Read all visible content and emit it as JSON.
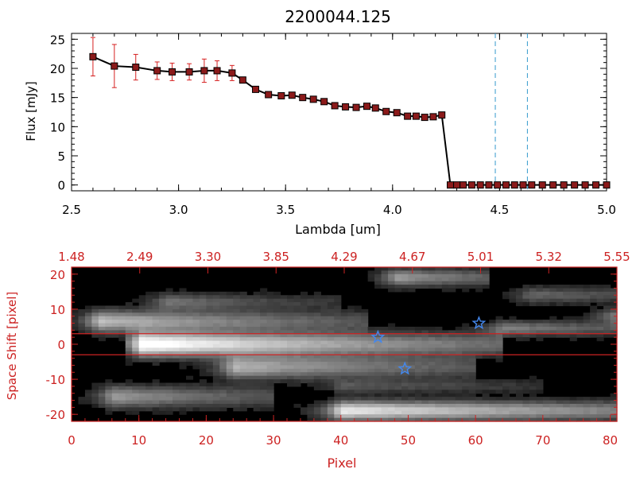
{
  "colors": {
    "axis_black": "#000000",
    "axis_red": "#cc2222",
    "error_bar": "#d62020",
    "marker_fill": "#8b1a1a",
    "dashed_line": "#3399cc",
    "star": "#4488ee",
    "band_line": "#cc2222"
  },
  "chart_data": [
    {
      "type": "line",
      "title": "2200044.125",
      "xlabel": "Lambda [um]",
      "ylabel": "Flux [mJy]",
      "xlim": [
        2.5,
        5.0
      ],
      "ylim": [
        -1,
        26
      ],
      "xticks": [
        "2.5",
        "3.0",
        "3.5",
        "4.0",
        "4.5",
        "5.0"
      ],
      "yticks": [
        "0",
        "5",
        "10",
        "15",
        "20",
        "25"
      ],
      "grid": false,
      "x": [
        2.6,
        2.7,
        2.8,
        2.9,
        2.97,
        3.05,
        3.12,
        3.18,
        3.25,
        3.3,
        3.36,
        3.42,
        3.48,
        3.53,
        3.58,
        3.63,
        3.68,
        3.73,
        3.78,
        3.83,
        3.88,
        3.92,
        3.97,
        4.02,
        4.07,
        4.11,
        4.15,
        4.19,
        4.23,
        4.27,
        4.3,
        4.33,
        4.37,
        4.41,
        4.45,
        4.49,
        4.53,
        4.57,
        4.61,
        4.65,
        4.7,
        4.75,
        4.8,
        4.85,
        4.9,
        4.95,
        5.0
      ],
      "y": [
        22.0,
        20.4,
        20.2,
        19.6,
        19.4,
        19.4,
        19.6,
        19.6,
        19.2,
        18.0,
        16.4,
        15.5,
        15.3,
        15.4,
        15.0,
        14.7,
        14.3,
        13.6,
        13.4,
        13.3,
        13.5,
        13.2,
        12.6,
        12.4,
        11.8,
        11.8,
        11.6,
        11.7,
        12.0,
        0.0,
        0.0,
        0.0,
        0.0,
        0.0,
        0.0,
        0.0,
        0.0,
        0.0,
        0.0,
        0.0,
        0.0,
        0.0,
        0.0,
        0.0,
        0.0,
        0.0,
        0.0
      ],
      "yerr": [
        3.3,
        3.7,
        2.2,
        1.5,
        1.5,
        1.4,
        2.0,
        1.7,
        1.3,
        0,
        0,
        0,
        0,
        0,
        0,
        0,
        0,
        0,
        0,
        0,
        0,
        0,
        0,
        0,
        0,
        0,
        0,
        0,
        0,
        0,
        0,
        0,
        0,
        0,
        0,
        0,
        0,
        0,
        0,
        0,
        0,
        0,
        0,
        0,
        0,
        0,
        0
      ],
      "vlines": [
        4.48,
        4.63
      ]
    },
    {
      "type": "heatmap",
      "xlabel": "Pixel",
      "ylabel": "Space Shift [pixel]",
      "xlim": [
        0,
        81
      ],
      "ylim": [
        -22,
        22
      ],
      "xticks": [
        "0",
        "10",
        "20",
        "30",
        "40",
        "50",
        "60",
        "70",
        "80"
      ],
      "yticks": [
        "20",
        "10",
        "0",
        "-10",
        "-20"
      ],
      "top_ticks": [
        "1.48",
        "2.49",
        "3.30",
        "3.85",
        "4.29",
        "4.67",
        "5.01",
        "5.32",
        "5.55"
      ],
      "band_y": [
        3,
        -3
      ],
      "stars": [
        {
          "x": 45.5,
          "y": 2
        },
        {
          "x": 60.5,
          "y": 6
        },
        {
          "x": 49.5,
          "y": -7
        }
      ],
      "blobs": [
        {
          "x0": 8,
          "x1": 64,
          "y": 0,
          "w": 2.2,
          "peak": 1.0,
          "cx": 10.5,
          "decay": 0.025
        },
        {
          "x0": 0,
          "x1": 44,
          "y": 6.5,
          "w": 2.0,
          "peak": 0.6,
          "cx": 4,
          "decay": 0.03
        },
        {
          "x0": 12,
          "x1": 60,
          "y": -6.5,
          "w": 2.2,
          "peak": 0.55,
          "cx": 24,
          "decay": 0.03
        },
        {
          "x0": 30,
          "x1": 81,
          "y": -19,
          "w": 1.8,
          "peak": 0.8,
          "cx": 40,
          "decay": 0.02
        },
        {
          "x0": 0,
          "x1": 30,
          "y": -15,
          "w": 2.0,
          "peak": 0.45,
          "cx": 6,
          "decay": 0.04
        },
        {
          "x0": 44,
          "x1": 62,
          "y": 19,
          "w": 1.6,
          "peak": 0.45,
          "cx": 48,
          "decay": 0.05
        },
        {
          "x0": 8,
          "x1": 40,
          "y": 12,
          "w": 1.6,
          "peak": 0.3,
          "cx": 14,
          "decay": 0.05
        },
        {
          "x0": 58,
          "x1": 81,
          "y": 4.5,
          "w": 1.4,
          "peak": 0.35,
          "cx": 64,
          "decay": 0.04
        },
        {
          "x0": 60,
          "x1": 81,
          "y": 14,
          "w": 1.5,
          "peak": 0.25,
          "cx": 68,
          "decay": 0.04
        },
        {
          "x0": 74,
          "x1": 81,
          "y": 8,
          "w": 1.5,
          "peak": 0.3,
          "cx": 80,
          "decay": 0.05
        },
        {
          "x0": 32,
          "x1": 70,
          "y": -12,
          "w": 1.3,
          "peak": 0.2,
          "cx": 40,
          "decay": 0.03
        }
      ]
    }
  ]
}
